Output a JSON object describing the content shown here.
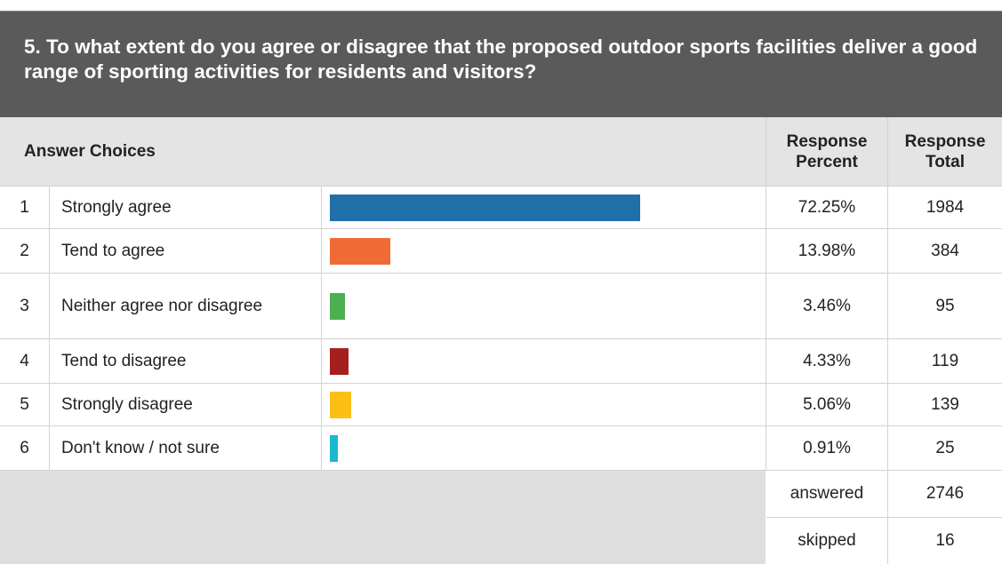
{
  "question": "5. To what extent do you agree or disagree that the proposed outdoor sports facilities deliver a good range of sporting activities for residents and visitors?",
  "headers": {
    "choices": "Answer Choices",
    "percent_line1": "Response",
    "percent_line2": "Percent",
    "total_line1": "Response",
    "total_line2": "Total"
  },
  "chart_data": {
    "type": "bar",
    "orientation": "horizontal",
    "categories": [
      "Strongly agree",
      "Tend to agree",
      "Neither agree nor disagree",
      "Tend to disagree",
      "Strongly disagree",
      "Don't know / not sure"
    ],
    "row_numbers": [
      "1",
      "2",
      "3",
      "4",
      "5",
      "6"
    ],
    "values": [
      72.25,
      13.98,
      3.46,
      4.33,
      5.06,
      0.91
    ],
    "percent_labels": [
      "72.25%",
      "13.98%",
      "3.46%",
      "4.33%",
      "5.06%",
      "0.91%"
    ],
    "totals": [
      "1984",
      "384",
      "95",
      "119",
      "139",
      "25"
    ],
    "colors": [
      "#1f6fa8",
      "#ef6a35",
      "#4caf50",
      "#a51f1f",
      "#fbbf16",
      "#1ab8d3"
    ],
    "xlim": [
      0,
      100
    ],
    "grid": false,
    "title": "5. To what extent do you agree or disagree that the proposed outdoor sports facilities deliver a good range of sporting activities for residents and visitors?"
  },
  "footer": {
    "answered_label": "answered",
    "answered_value": "2746",
    "skipped_label": "skipped",
    "skipped_value": "16"
  }
}
